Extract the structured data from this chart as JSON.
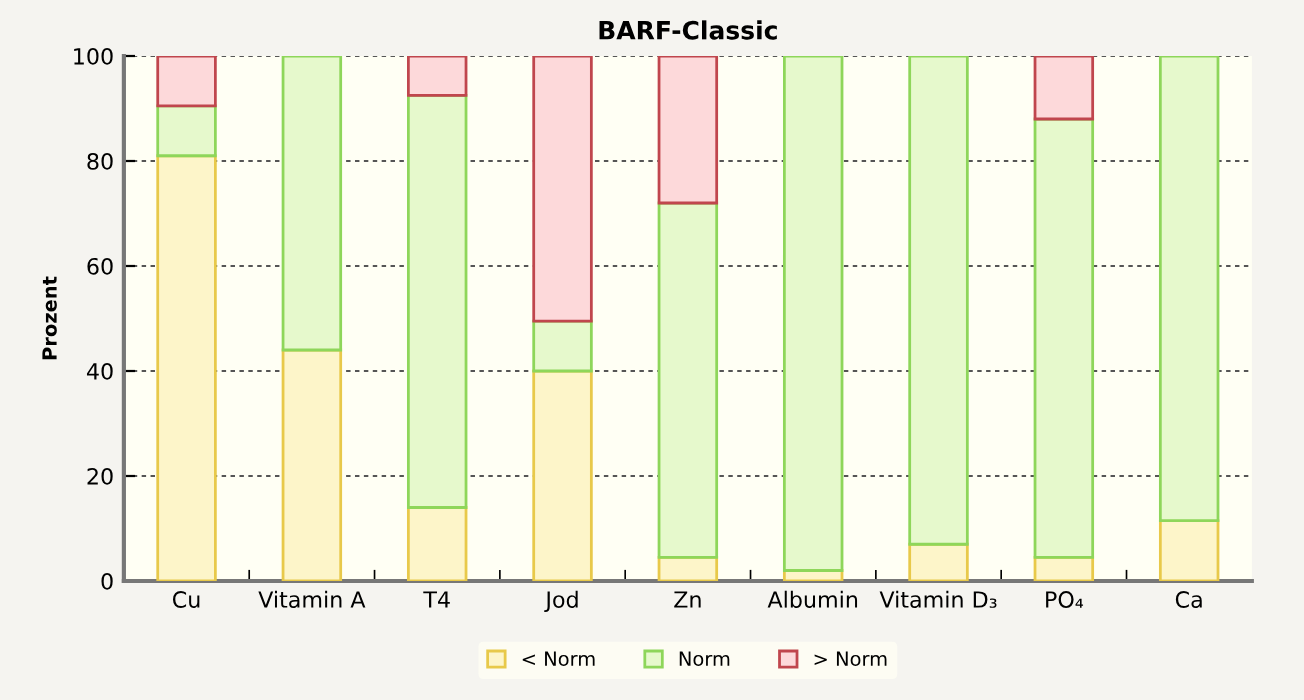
{
  "chart_data": {
    "type": "bar",
    "title": "BARF-Classic",
    "ylabel": "Prozent",
    "stacked": true,
    "categories": [
      "Cu",
      "Vitamin A",
      "T4",
      "Jod",
      "Zn",
      "Albumin",
      "Vitamin D₃",
      "PO₄",
      "Ca"
    ],
    "series": [
      {
        "name": "< Norm",
        "color": "#fdf5c9",
        "values": [
          81,
          44,
          14,
          40,
          4.5,
          2,
          7,
          4.5,
          11.5
        ]
      },
      {
        "name": "Norm",
        "color": "#e6f9cc",
        "values": [
          9.5,
          56,
          78.5,
          9.5,
          67.5,
          98,
          93,
          83.5,
          88.5
        ]
      },
      {
        "name": "> Norm",
        "color": "#fdd9da",
        "values": [
          9.5,
          null,
          7.5,
          50.5,
          28,
          null,
          null,
          12,
          null
        ]
      }
    ],
    "ylim": [
      0,
      100
    ],
    "yticks": [
      0,
      20,
      40,
      60,
      80,
      100
    ],
    "grid": "y",
    "legend": "bottom"
  }
}
